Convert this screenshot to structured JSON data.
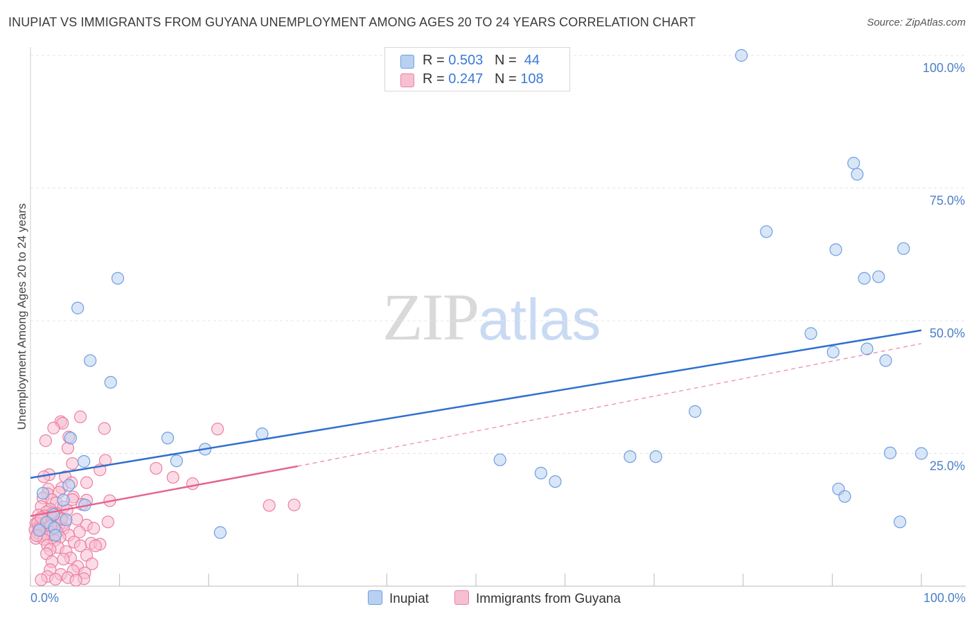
{
  "title": "INUPIAT VS IMMIGRANTS FROM GUYANA UNEMPLOYMENT AMONG AGES 20 TO 24 YEARS CORRELATION CHART",
  "source": "Source: ZipAtlas.com",
  "watermark": {
    "zip": "ZIP",
    "atlas": "atlas"
  },
  "legend": {
    "rows": [
      {
        "r_label": "R =",
        "r_value": "0.503",
        "n_label": "N =",
        "n_value": "44"
      },
      {
        "r_label": "R =",
        "r_value": "0.247",
        "n_label": "N =",
        "n_value": "108"
      }
    ]
  },
  "bottom_legend": [
    "Inupiat",
    "Immigrants from Guyana"
  ],
  "colors": {
    "inupiat_fill": "#b8d1f1",
    "inupiat_stroke": "#6d9ee0",
    "inupiat_line": "#2f6fcf",
    "guyana_fill": "#f7c0d1",
    "guyana_stroke": "#ea7fa1",
    "guyana_line": "#e36590",
    "grid": "#e4e4e4",
    "tick_label": "#4a7fc8"
  },
  "chart_data": {
    "type": "scatter",
    "title": "INUPIAT VS IMMIGRANTS FROM GUYANA UNEMPLOYMENT AMONG AGES 20 TO 24 YEARS CORRELATION CHART",
    "xlabel": "",
    "ylabel": "Unemployment Among Ages 20 to 24 years",
    "xlim": [
      0,
      100
    ],
    "ylim": [
      0,
      100
    ],
    "x_tick_labels": [
      "0.0%",
      "100.0%"
    ],
    "y_ticks": [
      25,
      50,
      75,
      100
    ],
    "y_tick_labels": [
      "25.0%",
      "50.0%",
      "75.0%",
      "100.0%"
    ],
    "grid": true,
    "series": [
      {
        "name": "Inupiat",
        "R": 0.503,
        "N": 44,
        "trend": {
          "x": [
            0,
            100
          ],
          "y": [
            20.4,
            48.2
          ],
          "dashed_extension": false
        },
        "points": [
          [
            79.8,
            100.0
          ],
          [
            92.4,
            79.7
          ],
          [
            92.8,
            77.6
          ],
          [
            82.6,
            66.8
          ],
          [
            90.4,
            63.4
          ],
          [
            98.0,
            63.6
          ],
          [
            93.6,
            58.0
          ],
          [
            95.2,
            58.3
          ],
          [
            9.8,
            58.0
          ],
          [
            5.3,
            52.4
          ],
          [
            87.6,
            47.6
          ],
          [
            90.1,
            44.1
          ],
          [
            93.9,
            44.7
          ],
          [
            96.0,
            42.5
          ],
          [
            6.7,
            42.5
          ],
          [
            9.0,
            38.4
          ],
          [
            74.6,
            32.9
          ],
          [
            26.0,
            28.7
          ],
          [
            15.4,
            27.9
          ],
          [
            4.5,
            27.9
          ],
          [
            19.6,
            25.8
          ],
          [
            96.5,
            25.1
          ],
          [
            100.0,
            25.0
          ],
          [
            67.3,
            24.4
          ],
          [
            70.2,
            24.4
          ],
          [
            6.0,
            23.5
          ],
          [
            16.4,
            23.6
          ],
          [
            52.7,
            23.8
          ],
          [
            57.3,
            21.3
          ],
          [
            58.9,
            19.7
          ],
          [
            4.3,
            19.0
          ],
          [
            1.4,
            17.5
          ],
          [
            90.7,
            18.3
          ],
          [
            91.4,
            16.9
          ],
          [
            3.7,
            16.2
          ],
          [
            6.1,
            15.3
          ],
          [
            2.6,
            13.5
          ],
          [
            4.0,
            12.5
          ],
          [
            1.8,
            12.0
          ],
          [
            97.6,
            12.1
          ],
          [
            2.7,
            11.0
          ],
          [
            1.0,
            10.5
          ],
          [
            21.3,
            10.1
          ],
          [
            2.8,
            9.6
          ]
        ]
      },
      {
        "name": "Immigrants from Guyana",
        "R": 0.247,
        "N": 108,
        "trend": {
          "x": [
            0,
            30
          ],
          "y": [
            13.2,
            22.6
          ],
          "dashed_extension": true,
          "dashed_to": [
            100,
            45.7
          ]
        },
        "points": [
          [
            5.6,
            31.9
          ],
          [
            3.4,
            31.0
          ],
          [
            3.6,
            30.7
          ],
          [
            2.6,
            29.8
          ],
          [
            8.3,
            29.7
          ],
          [
            21.0,
            29.6
          ],
          [
            4.3,
            28.1
          ],
          [
            1.7,
            27.4
          ],
          [
            4.2,
            26.0
          ],
          [
            8.4,
            23.7
          ],
          [
            4.7,
            23.1
          ],
          [
            14.1,
            22.2
          ],
          [
            7.8,
            21.9
          ],
          [
            2.1,
            21.0
          ],
          [
            1.5,
            20.6
          ],
          [
            3.9,
            20.6
          ],
          [
            16.0,
            20.5
          ],
          [
            6.3,
            19.5
          ],
          [
            4.6,
            19.5
          ],
          [
            18.2,
            19.3
          ],
          [
            3.5,
            18.5
          ],
          [
            2.0,
            18.3
          ],
          [
            3.2,
            17.7
          ],
          [
            1.9,
            17.4
          ],
          [
            4.8,
            16.8
          ],
          [
            1.4,
            16.6
          ],
          [
            2.4,
            16.3
          ],
          [
            6.3,
            16.2
          ],
          [
            4.7,
            16.3
          ],
          [
            8.9,
            16.1
          ],
          [
            2.9,
            15.7
          ],
          [
            5.8,
            15.4
          ],
          [
            26.8,
            15.2
          ],
          [
            29.6,
            15.3
          ],
          [
            1.2,
            15.0
          ],
          [
            3.7,
            14.9
          ],
          [
            2.2,
            14.5
          ],
          [
            4.1,
            14.3
          ],
          [
            1.8,
            14.0
          ],
          [
            2.9,
            13.7
          ],
          [
            0.9,
            13.4
          ],
          [
            1.6,
            13.2
          ],
          [
            2.4,
            13.0
          ],
          [
            3.4,
            12.8
          ],
          [
            5.2,
            12.6
          ],
          [
            1.1,
            12.4
          ],
          [
            2.0,
            12.2
          ],
          [
            2.9,
            12.1
          ],
          [
            3.9,
            12.0
          ],
          [
            8.7,
            12.1
          ],
          [
            0.6,
            11.8
          ],
          [
            1.4,
            11.6
          ],
          [
            2.2,
            11.5
          ],
          [
            3.2,
            11.4
          ],
          [
            6.3,
            11.5
          ],
          [
            0.9,
            11.2
          ],
          [
            1.7,
            11.0
          ],
          [
            2.6,
            10.9
          ],
          [
            3.7,
            10.8
          ],
          [
            7.1,
            10.9
          ],
          [
            0.5,
            10.6
          ],
          [
            1.3,
            10.4
          ],
          [
            2.1,
            10.3
          ],
          [
            3.0,
            10.2
          ],
          [
            5.5,
            10.2
          ],
          [
            0.8,
            10.0
          ],
          [
            1.6,
            9.8
          ],
          [
            2.5,
            9.7
          ],
          [
            4.3,
            9.6
          ],
          [
            1.1,
            9.4
          ],
          [
            2.0,
            9.3
          ],
          [
            3.3,
            9.2
          ],
          [
            0.6,
            9.0
          ],
          [
            1.5,
            8.8
          ],
          [
            2.7,
            8.6
          ],
          [
            4.9,
            8.3
          ],
          [
            6.8,
            8.1
          ],
          [
            7.8,
            7.9
          ],
          [
            1.9,
            7.7
          ],
          [
            5.6,
            7.6
          ],
          [
            7.3,
            7.6
          ],
          [
            3.1,
            7.3
          ],
          [
            2.2,
            6.9
          ],
          [
            4.0,
            6.5
          ],
          [
            1.8,
            6.1
          ],
          [
            6.3,
            5.8
          ],
          [
            4.5,
            5.3
          ],
          [
            3.7,
            5.1
          ],
          [
            2.4,
            4.6
          ],
          [
            6.9,
            4.2
          ],
          [
            5.3,
            3.7
          ],
          [
            2.2,
            3.1
          ],
          [
            4.8,
            2.9
          ],
          [
            6.1,
            2.5
          ],
          [
            3.4,
            2.2
          ],
          [
            1.9,
            1.8
          ],
          [
            4.2,
            1.6
          ],
          [
            6.0,
            1.4
          ],
          [
            2.8,
            1.3
          ],
          [
            1.2,
            1.2
          ],
          [
            5.1,
            1.1
          ],
          [
            0.8,
            11.9
          ],
          [
            1.2,
            12.9
          ],
          [
            2.5,
            13.8
          ],
          [
            3.5,
            12.6
          ],
          [
            1.0,
            10.8
          ],
          [
            2.3,
            11.3
          ],
          [
            0.7,
            9.5
          ]
        ]
      }
    ]
  }
}
